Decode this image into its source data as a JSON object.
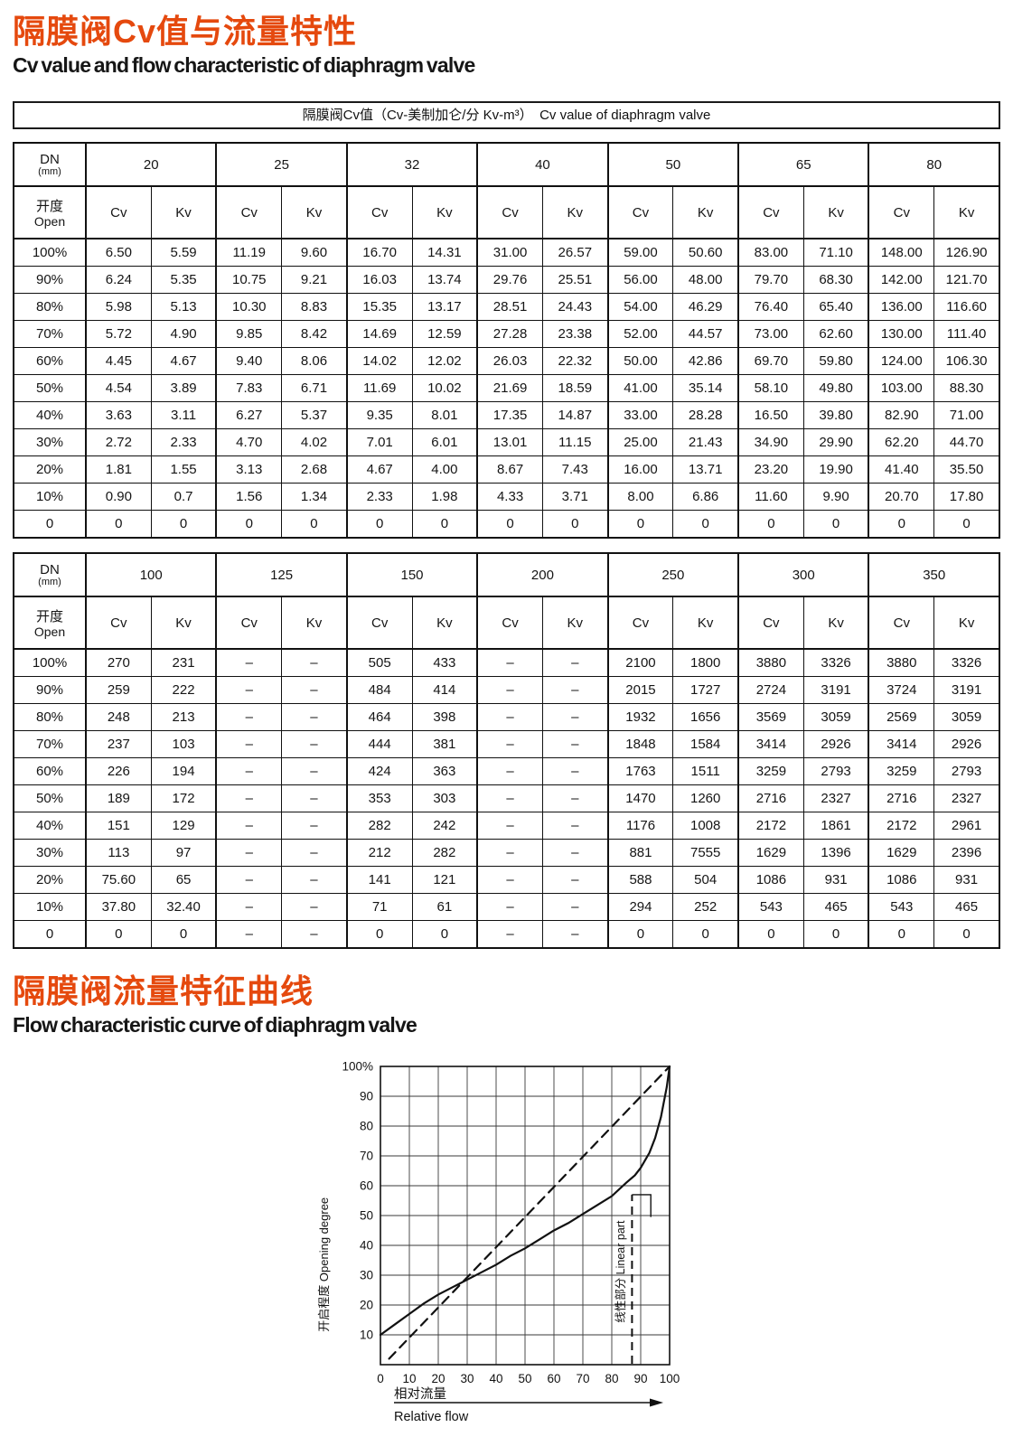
{
  "page": {
    "title_cn": "隔膜阀Cv值与流量特性",
    "title_en": "Cv value and flow characteristic of diaphragm valve",
    "table_caption": "隔膜阀Cv值（Cv-美制加仑/分 Kv-m³）　Cv value of diaphragm valve",
    "section2_title_cn": "隔膜阀流量特征曲线",
    "section2_title_en": "Flow characteristic curve of diaphragm valve",
    "accent_color": "#e5490e"
  },
  "table_labels": {
    "dn": "DN",
    "dn_unit": "(mm)",
    "open_cn": "开度",
    "open_en": "Open",
    "cv": "Cv",
    "kv": "Kv"
  },
  "tables": [
    {
      "dns": [
        "20",
        "25",
        "32",
        "40",
        "50",
        "65",
        "80"
      ],
      "rows": [
        {
          "open": "100%",
          "values": [
            "6.50",
            "5.59",
            "11.19",
            "9.60",
            "16.70",
            "14.31",
            "31.00",
            "26.57",
            "59.00",
            "50.60",
            "83.00",
            "71.10",
            "148.00",
            "126.90"
          ]
        },
        {
          "open": "90%",
          "values": [
            "6.24",
            "5.35",
            "10.75",
            "9.21",
            "16.03",
            "13.74",
            "29.76",
            "25.51",
            "56.00",
            "48.00",
            "79.70",
            "68.30",
            "142.00",
            "121.70"
          ]
        },
        {
          "open": "80%",
          "values": [
            "5.98",
            "5.13",
            "10.30",
            "8.83",
            "15.35",
            "13.17",
            "28.51",
            "24.43",
            "54.00",
            "46.29",
            "76.40",
            "65.40",
            "136.00",
            "116.60"
          ]
        },
        {
          "open": "70%",
          "values": [
            "5.72",
            "4.90",
            "9.85",
            "8.42",
            "14.69",
            "12.59",
            "27.28",
            "23.38",
            "52.00",
            "44.57",
            "73.00",
            "62.60",
            "130.00",
            "111.40"
          ]
        },
        {
          "open": "60%",
          "values": [
            "4.45",
            "4.67",
            "9.40",
            "8.06",
            "14.02",
            "12.02",
            "26.03",
            "22.32",
            "50.00",
            "42.86",
            "69.70",
            "59.80",
            "124.00",
            "106.30"
          ]
        },
        {
          "open": "50%",
          "values": [
            "4.54",
            "3.89",
            "7.83",
            "6.71",
            "11.69",
            "10.02",
            "21.69",
            "18.59",
            "41.00",
            "35.14",
            "58.10",
            "49.80",
            "103.00",
            "88.30"
          ]
        },
        {
          "open": "40%",
          "values": [
            "3.63",
            "3.11",
            "6.27",
            "5.37",
            "9.35",
            "8.01",
            "17.35",
            "14.87",
            "33.00",
            "28.28",
            "16.50",
            "39.80",
            "82.90",
            "71.00"
          ]
        },
        {
          "open": "30%",
          "values": [
            "2.72",
            "2.33",
            "4.70",
            "4.02",
            "7.01",
            "6.01",
            "13.01",
            "11.15",
            "25.00",
            "21.43",
            "34.90",
            "29.90",
            "62.20",
            "44.70"
          ]
        },
        {
          "open": "20%",
          "values": [
            "1.81",
            "1.55",
            "3.13",
            "2.68",
            "4.67",
            "4.00",
            "8.67",
            "7.43",
            "16.00",
            "13.71",
            "23.20",
            "19.90",
            "41.40",
            "35.50"
          ]
        },
        {
          "open": "10%",
          "values": [
            "0.90",
            "0.7",
            "1.56",
            "1.34",
            "2.33",
            "1.98",
            "4.33",
            "3.71",
            "8.00",
            "6.86",
            "11.60",
            "9.90",
            "20.70",
            "17.80"
          ]
        },
        {
          "open": "0",
          "values": [
            "0",
            "0",
            "0",
            "0",
            "0",
            "0",
            "0",
            "0",
            "0",
            "0",
            "0",
            "0",
            "0",
            "0"
          ]
        }
      ]
    },
    {
      "dns": [
        "100",
        "125",
        "150",
        "200",
        "250",
        "300",
        "350"
      ],
      "rows": [
        {
          "open": "100%",
          "values": [
            "270",
            "231",
            "–",
            "–",
            "505",
            "433",
            "–",
            "–",
            "2100",
            "1800",
            "3880",
            "3326",
            "3880",
            "3326"
          ]
        },
        {
          "open": "90%",
          "values": [
            "259",
            "222",
            "–",
            "–",
            "484",
            "414",
            "–",
            "–",
            "2015",
            "1727",
            "2724",
            "3191",
            "3724",
            "3191"
          ]
        },
        {
          "open": "80%",
          "values": [
            "248",
            "213",
            "–",
            "–",
            "464",
            "398",
            "–",
            "–",
            "1932",
            "1656",
            "3569",
            "3059",
            "2569",
            "3059"
          ]
        },
        {
          "open": "70%",
          "values": [
            "237",
            "103",
            "–",
            "–",
            "444",
            "381",
            "–",
            "–",
            "1848",
            "1584",
            "3414",
            "2926",
            "3414",
            "2926"
          ]
        },
        {
          "open": "60%",
          "values": [
            "226",
            "194",
            "–",
            "–",
            "424",
            "363",
            "–",
            "–",
            "1763",
            "1511",
            "3259",
            "2793",
            "3259",
            "2793"
          ]
        },
        {
          "open": "50%",
          "values": [
            "189",
            "172",
            "–",
            "–",
            "353",
            "303",
            "–",
            "–",
            "1470",
            "1260",
            "2716",
            "2327",
            "2716",
            "2327"
          ]
        },
        {
          "open": "40%",
          "values": [
            "151",
            "129",
            "–",
            "–",
            "282",
            "242",
            "–",
            "–",
            "1176",
            "1008",
            "2172",
            "1861",
            "2172",
            "2961"
          ]
        },
        {
          "open": "30%",
          "values": [
            "113",
            "97",
            "–",
            "–",
            "212",
            "282",
            "–",
            "–",
            "881",
            "7555",
            "1629",
            "1396",
            "1629",
            "2396"
          ]
        },
        {
          "open": "20%",
          "values": [
            "75.60",
            "65",
            "–",
            "–",
            "141",
            "121",
            "–",
            "–",
            "588",
            "504",
            "1086",
            "931",
            "1086",
            "931"
          ]
        },
        {
          "open": "10%",
          "values": [
            "37.80",
            "32.40",
            "–",
            "–",
            "71",
            "61",
            "–",
            "–",
            "294",
            "252",
            "543",
            "465",
            "543",
            "465"
          ]
        },
        {
          "open": "0",
          "values": [
            "0",
            "0",
            "–",
            "–",
            "0",
            "0",
            "–",
            "–",
            "0",
            "0",
            "0",
            "0",
            "0",
            "0"
          ]
        }
      ]
    }
  ],
  "chart_data": {
    "type": "line",
    "title": "",
    "xlabel_cn": "相对流量",
    "xlabel_en": "Relative flow",
    "ylabel": "开启程度 Opening degree",
    "annotation": "线性部分 Linear part",
    "annotation_x": 87,
    "annotation_connector": [
      [
        87,
        57
      ],
      [
        93.5,
        57
      ],
      [
        93.5,
        49.5
      ]
    ],
    "xlim": [
      0,
      100
    ],
    "ylim": [
      0,
      100
    ],
    "grid": true,
    "x_ticks": [
      0,
      10,
      20,
      30,
      40,
      50,
      60,
      70,
      80,
      90,
      100
    ],
    "y_tick_labels": [
      "100%",
      "90",
      "80",
      "70",
      "60",
      "50",
      "40",
      "30",
      "20",
      "10"
    ],
    "series": [
      {
        "name": "valve-flow-curve",
        "style": "solid",
        "points": [
          [
            0,
            10
          ],
          [
            5,
            13.5
          ],
          [
            10,
            17
          ],
          [
            15,
            20.5
          ],
          [
            20,
            23.5
          ],
          [
            25,
            26
          ],
          [
            30,
            28.5
          ],
          [
            35,
            31
          ],
          [
            40,
            33.5
          ],
          [
            45,
            36.5
          ],
          [
            50,
            39
          ],
          [
            55,
            42
          ],
          [
            60,
            45
          ],
          [
            65,
            47.5
          ],
          [
            70,
            50.5
          ],
          [
            75,
            53.5
          ],
          [
            80,
            56.5
          ],
          [
            85,
            61
          ],
          [
            88,
            63.5
          ],
          [
            90,
            66
          ],
          [
            93,
            71
          ],
          [
            95,
            76
          ],
          [
            97,
            83
          ],
          [
            99,
            93
          ],
          [
            100,
            100
          ]
        ]
      },
      {
        "name": "linear-reference",
        "style": "dashed",
        "points": [
          [
            3,
            2
          ],
          [
            100,
            100
          ]
        ]
      }
    ]
  }
}
